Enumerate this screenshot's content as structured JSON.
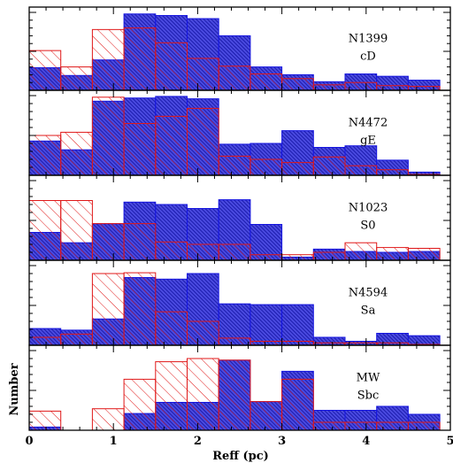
{
  "chart_data": {
    "type": "bar",
    "xlabel": "Reff (pc)",
    "ylabel": "Number",
    "xlim": [
      0,
      5
    ],
    "x_ticks": [
      "0",
      "1",
      "2",
      "3",
      "4",
      "5"
    ],
    "bin_edges": [
      0,
      0.375,
      0.75,
      1.125,
      1.5,
      1.875,
      2.25,
      2.625,
      3.0,
      3.375,
      3.75,
      4.125,
      4.5,
      4.875
    ],
    "colors": {
      "blue_fill": "#3b3bd8",
      "blue_edge": "#1515e0",
      "red": "#e01818"
    },
    "panels": [
      {
        "label_line1": "N1399",
        "label_line2": "cD",
        "ymax": 10,
        "series": [
          {
            "style": "blue-solid-hatch",
            "values": [
              2.9,
              1.9,
              3.9,
              9.8,
              9.6,
              9.2,
              7.0,
              3.0,
              2.0,
              1.1,
              2.1,
              1.8,
              1.3,
              0.0
            ]
          },
          {
            "style": "red-hatch-outline",
            "values": [
              5.1,
              3.0,
              7.8,
              8.0,
              6.1,
              4.1,
              3.1,
              2.1,
              1.5,
              0.7,
              1.0,
              0.6,
              0.5,
              0.0
            ]
          }
        ]
      },
      {
        "label_line1": "N4472",
        "label_line2": "gE",
        "ymax": 10,
        "series": [
          {
            "style": "blue-solid-hatch",
            "values": [
              4.3,
              3.2,
              9.3,
              9.7,
              9.9,
              9.6,
              3.9,
              4.0,
              5.6,
              3.5,
              3.7,
              1.9,
              0.4,
              0.0
            ]
          },
          {
            "style": "red-hatch-outline",
            "values": [
              5.0,
              5.4,
              9.8,
              6.5,
              7.4,
              8.4,
              2.4,
              2.0,
              1.6,
              2.3,
              1.2,
              0.7,
              0.1,
              0.7
            ]
          }
        ]
      },
      {
        "label_line1": "N1023",
        "label_line2": "S0",
        "ymax": 10,
        "series": [
          {
            "style": "blue-solid-hatch",
            "values": [
              3.5,
              2.2,
              4.6,
              7.3,
              7.0,
              6.5,
              7.6,
              4.5,
              0.4,
              1.4,
              1.1,
              1.0,
              1.1,
              0.0
            ]
          },
          {
            "style": "red-hatch-outline",
            "values": [
              7.5,
              7.5,
              4.6,
              4.6,
              2.3,
              2.0,
              2.0,
              0.7,
              0.7,
              1.0,
              2.2,
              1.6,
              1.5,
              0.0
            ]
          }
        ]
      },
      {
        "label_line1": "N4594",
        "label_line2": "Sa",
        "ymax": 10,
        "series": [
          {
            "style": "blue-solid-hatch",
            "values": [
              2.1,
              1.9,
              3.3,
              8.5,
              8.3,
              9.0,
              5.2,
              5.1,
              5.1,
              1.0,
              0.5,
              1.5,
              1.2,
              0.0
            ]
          },
          {
            "style": "red-hatch-outline",
            "values": [
              1.0,
              1.4,
              9.0,
              9.1,
              4.2,
              3.0,
              0.9,
              0.5,
              0.5,
              0.3,
              0.3,
              0.3,
              0.1,
              0.0
            ]
          }
        ]
      },
      {
        "label_line1": "MW",
        "label_line2": "Sbc",
        "ymax": 10,
        "series": [
          {
            "style": "blue-solid-hatch",
            "values": [
              0.4,
              0.0,
              0.0,
              2.1,
              3.5,
              3.5,
              8.8,
              3.6,
              7.4,
              2.5,
              2.5,
              3.0,
              2.0,
              0.0
            ]
          },
          {
            "style": "red-hatch-outline",
            "values": [
              2.4,
              0.0,
              2.7,
              6.4,
              8.6,
              9.0,
              8.8,
              3.6,
              6.4,
              1.0,
              1.0,
              1.0,
              1.0,
              0.0
            ]
          }
        ]
      }
    ]
  }
}
